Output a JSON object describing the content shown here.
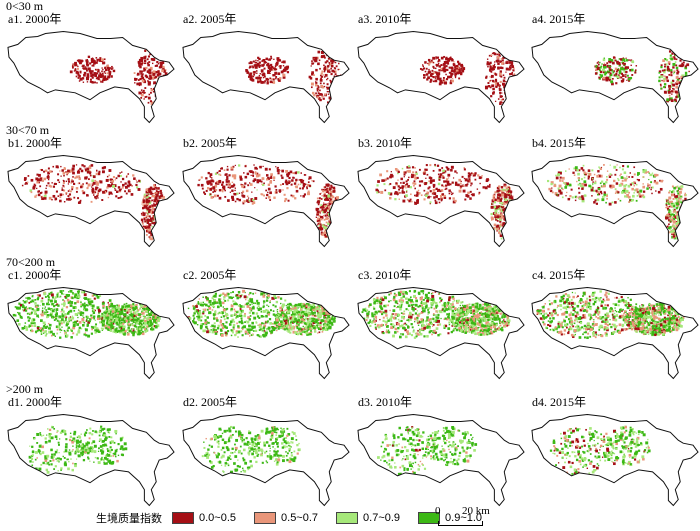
{
  "rows": [
    {
      "id": "a",
      "label": "0<30 m",
      "panels": [
        {
          "title": "a1. 2000年",
          "fill": [
            [
              0.95,
              0.05,
              0,
              0
            ],
            [
              0.85,
              0.15,
              0,
              0
            ]
          ]
        },
        {
          "title": "a2. 2005年",
          "fill": [
            [
              0.9,
              0.1,
              0,
              0
            ],
            [
              0.85,
              0.15,
              0,
              0
            ]
          ]
        },
        {
          "title": "a3. 2010年",
          "fill": [
            [
              0.9,
              0.1,
              0,
              0
            ],
            [
              0.85,
              0.15,
              0,
              0
            ]
          ]
        },
        {
          "title": "a4. 2015年",
          "fill": [
            [
              0.55,
              0.05,
              0.1,
              0.3
            ],
            [
              0.55,
              0.1,
              0.1,
              0.25
            ]
          ]
        }
      ]
    },
    {
      "id": "b",
      "label": "30<70 m",
      "panels": [
        {
          "title": "b1. 2000年",
          "fill": [
            [
              0.7,
              0.25,
              0.05,
              0
            ],
            [
              0.6,
              0.3,
              0.1,
              0
            ]
          ]
        },
        {
          "title": "b2. 2005年",
          "fill": [
            [
              0.7,
              0.25,
              0.05,
              0
            ],
            [
              0.6,
              0.3,
              0.1,
              0
            ]
          ]
        },
        {
          "title": "b3. 2010年",
          "fill": [
            [
              0.65,
              0.25,
              0.1,
              0
            ],
            [
              0.55,
              0.3,
              0.15,
              0
            ]
          ]
        },
        {
          "title": "b4. 2015年",
          "fill": [
            [
              0.3,
              0.3,
              0.25,
              0.15
            ],
            [
              0.25,
              0.35,
              0.25,
              0.15
            ]
          ]
        }
      ]
    },
    {
      "id": "c",
      "label": "70<200 m",
      "panels": [
        {
          "title": "c1. 2000年",
          "fill": [
            [
              0.05,
              0.1,
              0.25,
              0.6
            ],
            [
              0.05,
              0.15,
              0.3,
              0.5
            ]
          ]
        },
        {
          "title": "c2. 2005年",
          "fill": [
            [
              0.05,
              0.15,
              0.25,
              0.55
            ],
            [
              0.05,
              0.2,
              0.3,
              0.45
            ]
          ]
        },
        {
          "title": "c3. 2010年",
          "fill": [
            [
              0.1,
              0.2,
              0.25,
              0.45
            ],
            [
              0.05,
              0.25,
              0.3,
              0.4
            ]
          ]
        },
        {
          "title": "c4. 2015年",
          "fill": [
            [
              0.15,
              0.25,
              0.25,
              0.35
            ],
            [
              0.1,
              0.25,
              0.3,
              0.35
            ]
          ]
        }
      ]
    },
    {
      "id": "d",
      "label": ">200 m",
      "panels": [
        {
          "title": "d1. 2000年",
          "fill": [
            [
              0,
              0.05,
              0.35,
              0.6
            ],
            [
              0,
              0.05,
              0.35,
              0.6
            ]
          ]
        },
        {
          "title": "d2. 2005年",
          "fill": [
            [
              0,
              0.05,
              0.35,
              0.6
            ],
            [
              0,
              0.05,
              0.35,
              0.6
            ]
          ]
        },
        {
          "title": "d3. 2010年",
          "fill": [
            [
              0.05,
              0.1,
              0.35,
              0.5
            ],
            [
              0,
              0.05,
              0.35,
              0.6
            ]
          ]
        },
        {
          "title": "d4. 2015年",
          "fill": [
            [
              0.15,
              0.15,
              0.3,
              0.4
            ],
            [
              0.05,
              0.1,
              0.35,
              0.5
            ]
          ]
        }
      ]
    }
  ],
  "legend": {
    "title": "生境质量指数",
    "items": [
      {
        "label": "0.0~0.5",
        "color": "#a50f15"
      },
      {
        "label": "0.5~0.7",
        "color": "#e9967a"
      },
      {
        "label": "0.7~0.9",
        "color": "#a6e87a"
      },
      {
        "label": "0.9~1.0",
        "color": "#3cb815"
      }
    ]
  },
  "scalebar": {
    "start": "0",
    "end": "20 km"
  }
}
